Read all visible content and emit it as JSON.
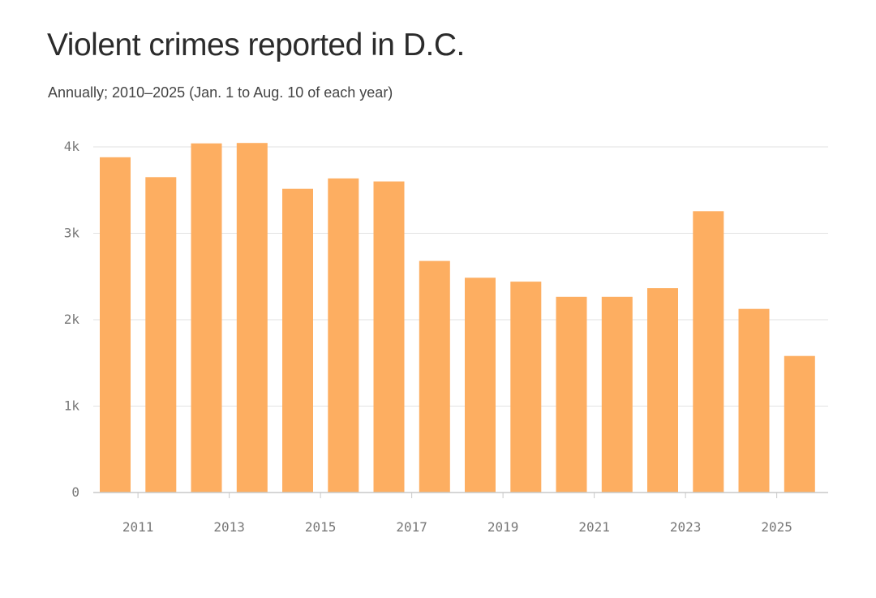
{
  "title": "Violent crimes reported in D.C.",
  "subtitle": "Annually; 2010–2025 (Jan. 1 to Aug. 10 of each year)",
  "colors": {
    "bar": "#fdae61",
    "grid": "#e2e2e2",
    "axis": "#c8c8c8",
    "tick_text": "#777777"
  },
  "chart_data": {
    "type": "bar",
    "title": "Violent crimes reported in D.C.",
    "subtitle": "Annually; 2010–2025 (Jan. 1 to Aug. 10 of each year)",
    "xlabel": "",
    "ylabel": "",
    "categories": [
      2010,
      2011,
      2012,
      2013,
      2014,
      2015,
      2016,
      2017,
      2018,
      2019,
      2020,
      2021,
      2022,
      2023,
      2024,
      2025
    ],
    "values": [
      3880,
      3650,
      4040,
      4045,
      3515,
      3635,
      3600,
      2680,
      2485,
      2440,
      2265,
      2265,
      2365,
      3255,
      2125,
      1580
    ],
    "ylim": [
      0,
      4000
    ],
    "y_ticks": [
      0,
      1000,
      2000,
      3000,
      4000
    ],
    "y_tick_labels": [
      "0",
      "1k",
      "2k",
      "3k",
      "4k"
    ],
    "x_tick_labels": [
      "2011",
      "2013",
      "2015",
      "2017",
      "2019",
      "2021",
      "2023",
      "2025"
    ],
    "grid": true,
    "legend": "none"
  }
}
